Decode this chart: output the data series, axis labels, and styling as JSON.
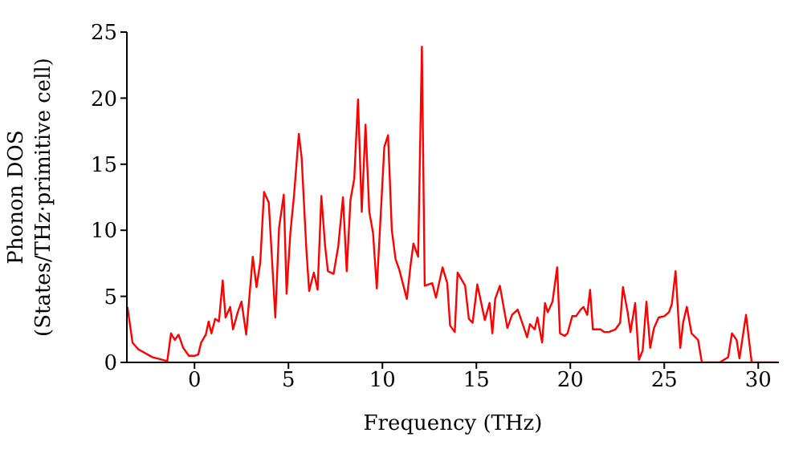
{
  "chart_data": {
    "type": "line",
    "xlabel": "Frequency (THz)",
    "ylabel": "Phonon DOS\n(States/THz·primitive cell)",
    "xlim": [
      -3.6,
      31.1
    ],
    "xticks": [
      0,
      5,
      10,
      15,
      20,
      25,
      30
    ],
    "ylim": [
      0,
      25
    ],
    "yticks": [
      0,
      5,
      10,
      15,
      20,
      25
    ],
    "grid": false,
    "legend": false,
    "marker": "none",
    "line_style": "solid",
    "series": [
      {
        "color": "#ff0000",
        "x": [
          -3.57,
          -3.3,
          -3.0,
          -2.25,
          -1.45,
          -1.25,
          -1.05,
          -0.85,
          -0.6,
          -0.3,
          0.0,
          0.2,
          0.35,
          0.6,
          0.75,
          0.9,
          1.1,
          1.3,
          1.5,
          1.65,
          1.9,
          2.05,
          2.3,
          2.5,
          2.75,
          3.1,
          3.3,
          3.5,
          3.7,
          3.95,
          4.3,
          4.5,
          4.75,
          4.9,
          5.1,
          5.3,
          5.55,
          5.7,
          5.95,
          6.1,
          6.35,
          6.55,
          6.75,
          6.95,
          7.1,
          7.4,
          7.65,
          7.9,
          8.1,
          8.3,
          8.5,
          8.7,
          8.9,
          9.1,
          9.3,
          9.5,
          9.7,
          10.1,
          10.3,
          10.5,
          10.7,
          10.9,
          11.3,
          11.5,
          11.65,
          11.9,
          12.1,
          12.25,
          12.65,
          12.85,
          13.2,
          13.45,
          13.6,
          13.85,
          14.0,
          14.4,
          14.6,
          14.8,
          15.05,
          15.45,
          15.7,
          15.85,
          16.0,
          16.25,
          16.65,
          16.9,
          17.2,
          17.7,
          17.85,
          18.1,
          18.25,
          18.5,
          18.65,
          18.8,
          19.05,
          19.3,
          19.45,
          19.7,
          19.85,
          20.1,
          20.3,
          20.55,
          20.7,
          20.9,
          21.05,
          21.2,
          21.6,
          21.8,
          22.05,
          22.4,
          22.65,
          22.8,
          23.05,
          23.2,
          23.45,
          23.65,
          23.85,
          24.05,
          24.25,
          24.45,
          24.7,
          25.0,
          25.25,
          25.4,
          25.6,
          25.85,
          26.0,
          26.2,
          26.45,
          26.8,
          27.0,
          27.95,
          28.4,
          28.6,
          28.85,
          29.0,
          29.35,
          29.65,
          31.05
        ],
        "values": [
          4.2,
          1.5,
          1.0,
          0.4,
          0.1,
          2.2,
          1.7,
          2.1,
          1.1,
          0.5,
          0.5,
          0.6,
          1.5,
          2.1,
          3.1,
          2.2,
          3.3,
          3.1,
          6.2,
          3.4,
          4.2,
          2.5,
          3.8,
          4.6,
          2.1,
          8,
          5.7,
          7.6,
          12.9,
          12.1,
          3.4,
          10.2,
          12.7,
          5.2,
          9.8,
          12.7,
          17.3,
          15.5,
          8.6,
          5.4,
          6.8,
          5.5,
          12.6,
          8.8,
          6.9,
          6.7,
          8.8,
          12.5,
          6.9,
          12.3,
          13.9,
          19.9,
          11.4,
          18,
          11.4,
          9.8,
          5.6,
          16.3,
          17.2,
          10,
          7.8,
          7,
          4.8,
          7.4,
          9,
          8,
          23.9,
          5.8,
          6,
          4.9,
          7.2,
          6,
          2.8,
          2.3,
          6.8,
          5.8,
          3.3,
          3,
          5.9,
          3.2,
          4.5,
          2.2,
          4.8,
          5.8,
          2.6,
          3.6,
          4,
          1.9,
          2.9,
          2.5,
          3.4,
          1.5,
          4.5,
          3.8,
          4.6,
          7.2,
          2.2,
          2,
          2.2,
          3.5,
          3.5,
          4,
          4.2,
          3.6,
          5.5,
          2.5,
          2.5,
          2.3,
          2.3,
          2.5,
          3,
          5.7,
          3.8,
          2.3,
          4.5,
          0.2,
          0.9,
          4.6,
          1.1,
          2.6,
          3.4,
          3.5,
          3.8,
          4.4,
          6.9,
          1.1,
          3,
          4.2,
          2.2,
          1.7,
          0,
          0,
          0.4,
          2.2,
          1.7,
          0.3,
          3.6,
          0,
          0
        ]
      }
    ]
  }
}
